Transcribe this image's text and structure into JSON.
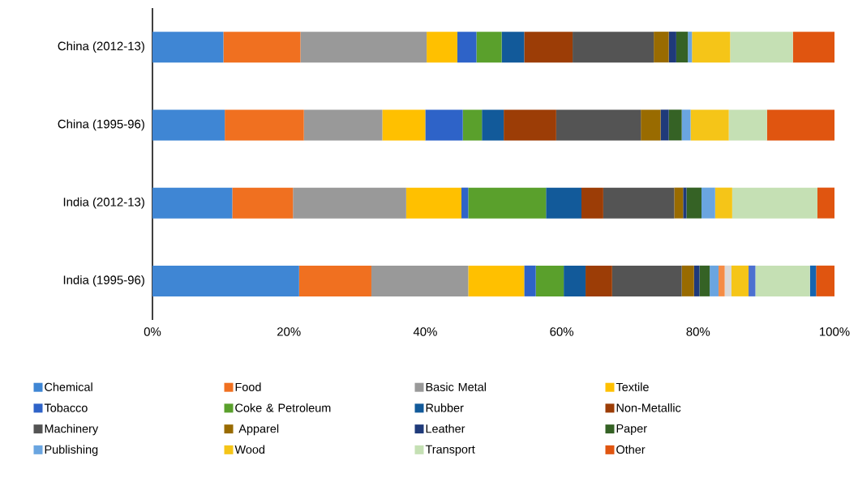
{
  "chart_data": {
    "type": "bar",
    "orientation": "horizontal",
    "stacked": true,
    "legend": "bottom",
    "categories": [
      "China (2012-13)",
      "China (1995-96)",
      "India (2012-13)",
      "India (1995-96)"
    ],
    "xlim": [
      0,
      100
    ],
    "xticks": [
      {
        "value": 0,
        "label": "0%"
      },
      {
        "value": 20,
        "label": "20%"
      },
      {
        "value": 40,
        "label": "40%"
      },
      {
        "value": 60,
        "label": "60%"
      },
      {
        "value": 80,
        "label": "80%"
      },
      {
        "value": 100,
        "label": "100%"
      }
    ],
    "series": [
      {
        "name": "Chemical",
        "color": "#3f86d4",
        "values": [
          10.4,
          10.6,
          11.7,
          21.5
        ]
      },
      {
        "name": "Food",
        "color": "#f07020",
        "values": [
          11.3,
          11.6,
          8.9,
          10.6
        ]
      },
      {
        "name": "Basic Metal",
        "color": "#999999",
        "values": [
          18.5,
          11.5,
          16.6,
          14.2
        ]
      },
      {
        "name": "Textile",
        "color": "#ffc000",
        "values": [
          4.5,
          6.3,
          8.1,
          8.2
        ]
      },
      {
        "name": "Tobacco",
        "color": "#2e63c8",
        "values": [
          2.8,
          5.5,
          1.0,
          1.7
        ]
      },
      {
        "name": "Coke & Petroleum",
        "color": "#5aa02c",
        "values": [
          3.7,
          2.8,
          11.4,
          4.1
        ]
      },
      {
        "name": "Rubber",
        "color": "#125a9a",
        "values": [
          3.3,
          3.2,
          5.2,
          3.2
        ]
      },
      {
        "name": "Non-Metallic",
        "color": "#9c3d06",
        "values": [
          7.1,
          7.7,
          3.2,
          3.9
        ]
      },
      {
        "name": "Machinery",
        "color": "#545454",
        "values": [
          11.9,
          12.4,
          10.4,
          10.2
        ]
      },
      {
        "name": " Apparel",
        "color": "#996b00",
        "values": [
          2.2,
          2.9,
          1.3,
          1.8
        ]
      },
      {
        "name": "Leather",
        "color": "#1f3a7a",
        "values": [
          1.1,
          1.2,
          0.5,
          0.8
        ]
      },
      {
        "name": "Paper",
        "color": "#356225",
        "values": [
          1.7,
          1.9,
          2.2,
          1.5
        ]
      },
      {
        "name": "Publishing",
        "color": "#6aa5e0",
        "values": [
          0.6,
          1.3,
          2.0,
          1.3
        ]
      },
      {
        "color": "#f58c45",
        "values": [
          null,
          null,
          null,
          0.9
        ]
      },
      {
        "color": "#d9d9d9",
        "values": [
          null,
          null,
          null,
          1.0
        ]
      },
      {
        "name": "Wood",
        "color": "#f5c518",
        "values": [
          5.6,
          5.6,
          2.5,
          2.5
        ]
      },
      {
        "color": "#4c70d0",
        "values": [
          null,
          null,
          null,
          1.0
        ]
      },
      {
        "name": "Transport",
        "color": "#c5e0b4",
        "values": [
          9.2,
          5.6,
          12.5,
          8.0
        ]
      },
      {
        "color": "#1565b0",
        "values": [
          null,
          null,
          null,
          0.9
        ]
      },
      {
        "name": "Other",
        "color": "#e05510",
        "values": [
          6.1,
          9.9,
          2.5,
          2.7
        ]
      }
    ]
  }
}
